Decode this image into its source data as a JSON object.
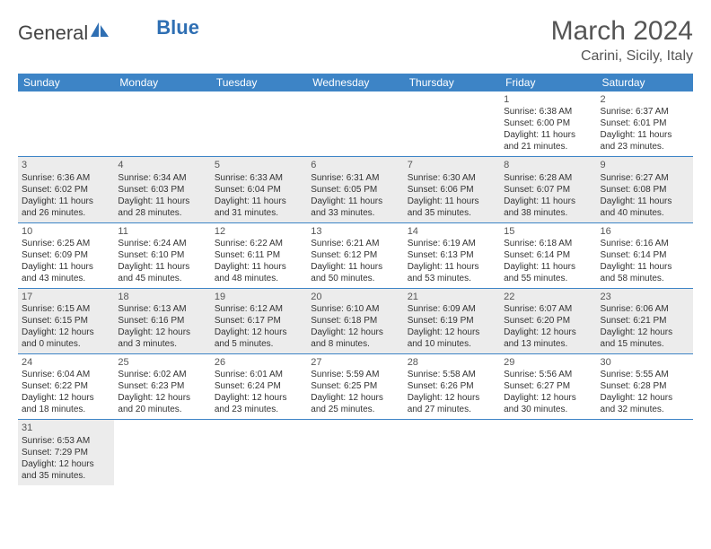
{
  "brand": {
    "part1": "General",
    "part2": "Blue"
  },
  "title": "March 2024",
  "location": "Carini, Sicily, Italy",
  "colors": {
    "header_bg": "#3d84c6",
    "header_text": "#ffffff",
    "shade_bg": "#ececec",
    "rule": "#3d84c6",
    "brand_blue": "#2f6fb3",
    "text": "#333333"
  },
  "day_headers": [
    "Sunday",
    "Monday",
    "Tuesday",
    "Wednesday",
    "Thursday",
    "Friday",
    "Saturday"
  ],
  "weeks": [
    {
      "shade": false,
      "cells": [
        null,
        null,
        null,
        null,
        null,
        {
          "n": "1",
          "sr": "Sunrise: 6:38 AM",
          "ss": "Sunset: 6:00 PM",
          "d1": "Daylight: 11 hours",
          "d2": "and 21 minutes."
        },
        {
          "n": "2",
          "sr": "Sunrise: 6:37 AM",
          "ss": "Sunset: 6:01 PM",
          "d1": "Daylight: 11 hours",
          "d2": "and 23 minutes."
        }
      ]
    },
    {
      "shade": true,
      "cells": [
        {
          "n": "3",
          "sr": "Sunrise: 6:36 AM",
          "ss": "Sunset: 6:02 PM",
          "d1": "Daylight: 11 hours",
          "d2": "and 26 minutes."
        },
        {
          "n": "4",
          "sr": "Sunrise: 6:34 AM",
          "ss": "Sunset: 6:03 PM",
          "d1": "Daylight: 11 hours",
          "d2": "and 28 minutes."
        },
        {
          "n": "5",
          "sr": "Sunrise: 6:33 AM",
          "ss": "Sunset: 6:04 PM",
          "d1": "Daylight: 11 hours",
          "d2": "and 31 minutes."
        },
        {
          "n": "6",
          "sr": "Sunrise: 6:31 AM",
          "ss": "Sunset: 6:05 PM",
          "d1": "Daylight: 11 hours",
          "d2": "and 33 minutes."
        },
        {
          "n": "7",
          "sr": "Sunrise: 6:30 AM",
          "ss": "Sunset: 6:06 PM",
          "d1": "Daylight: 11 hours",
          "d2": "and 35 minutes."
        },
        {
          "n": "8",
          "sr": "Sunrise: 6:28 AM",
          "ss": "Sunset: 6:07 PM",
          "d1": "Daylight: 11 hours",
          "d2": "and 38 minutes."
        },
        {
          "n": "9",
          "sr": "Sunrise: 6:27 AM",
          "ss": "Sunset: 6:08 PM",
          "d1": "Daylight: 11 hours",
          "d2": "and 40 minutes."
        }
      ]
    },
    {
      "shade": false,
      "cells": [
        {
          "n": "10",
          "sr": "Sunrise: 6:25 AM",
          "ss": "Sunset: 6:09 PM",
          "d1": "Daylight: 11 hours",
          "d2": "and 43 minutes."
        },
        {
          "n": "11",
          "sr": "Sunrise: 6:24 AM",
          "ss": "Sunset: 6:10 PM",
          "d1": "Daylight: 11 hours",
          "d2": "and 45 minutes."
        },
        {
          "n": "12",
          "sr": "Sunrise: 6:22 AM",
          "ss": "Sunset: 6:11 PM",
          "d1": "Daylight: 11 hours",
          "d2": "and 48 minutes."
        },
        {
          "n": "13",
          "sr": "Sunrise: 6:21 AM",
          "ss": "Sunset: 6:12 PM",
          "d1": "Daylight: 11 hours",
          "d2": "and 50 minutes."
        },
        {
          "n": "14",
          "sr": "Sunrise: 6:19 AM",
          "ss": "Sunset: 6:13 PM",
          "d1": "Daylight: 11 hours",
          "d2": "and 53 minutes."
        },
        {
          "n": "15",
          "sr": "Sunrise: 6:18 AM",
          "ss": "Sunset: 6:14 PM",
          "d1": "Daylight: 11 hours",
          "d2": "and 55 minutes."
        },
        {
          "n": "16",
          "sr": "Sunrise: 6:16 AM",
          "ss": "Sunset: 6:14 PM",
          "d1": "Daylight: 11 hours",
          "d2": "and 58 minutes."
        }
      ]
    },
    {
      "shade": true,
      "cells": [
        {
          "n": "17",
          "sr": "Sunrise: 6:15 AM",
          "ss": "Sunset: 6:15 PM",
          "d1": "Daylight: 12 hours",
          "d2": "and 0 minutes."
        },
        {
          "n": "18",
          "sr": "Sunrise: 6:13 AM",
          "ss": "Sunset: 6:16 PM",
          "d1": "Daylight: 12 hours",
          "d2": "and 3 minutes."
        },
        {
          "n": "19",
          "sr": "Sunrise: 6:12 AM",
          "ss": "Sunset: 6:17 PM",
          "d1": "Daylight: 12 hours",
          "d2": "and 5 minutes."
        },
        {
          "n": "20",
          "sr": "Sunrise: 6:10 AM",
          "ss": "Sunset: 6:18 PM",
          "d1": "Daylight: 12 hours",
          "d2": "and 8 minutes."
        },
        {
          "n": "21",
          "sr": "Sunrise: 6:09 AM",
          "ss": "Sunset: 6:19 PM",
          "d1": "Daylight: 12 hours",
          "d2": "and 10 minutes."
        },
        {
          "n": "22",
          "sr": "Sunrise: 6:07 AM",
          "ss": "Sunset: 6:20 PM",
          "d1": "Daylight: 12 hours",
          "d2": "and 13 minutes."
        },
        {
          "n": "23",
          "sr": "Sunrise: 6:06 AM",
          "ss": "Sunset: 6:21 PM",
          "d1": "Daylight: 12 hours",
          "d2": "and 15 minutes."
        }
      ]
    },
    {
      "shade": false,
      "cells": [
        {
          "n": "24",
          "sr": "Sunrise: 6:04 AM",
          "ss": "Sunset: 6:22 PM",
          "d1": "Daylight: 12 hours",
          "d2": "and 18 minutes."
        },
        {
          "n": "25",
          "sr": "Sunrise: 6:02 AM",
          "ss": "Sunset: 6:23 PM",
          "d1": "Daylight: 12 hours",
          "d2": "and 20 minutes."
        },
        {
          "n": "26",
          "sr": "Sunrise: 6:01 AM",
          "ss": "Sunset: 6:24 PM",
          "d1": "Daylight: 12 hours",
          "d2": "and 23 minutes."
        },
        {
          "n": "27",
          "sr": "Sunrise: 5:59 AM",
          "ss": "Sunset: 6:25 PM",
          "d1": "Daylight: 12 hours",
          "d2": "and 25 minutes."
        },
        {
          "n": "28",
          "sr": "Sunrise: 5:58 AM",
          "ss": "Sunset: 6:26 PM",
          "d1": "Daylight: 12 hours",
          "d2": "and 27 minutes."
        },
        {
          "n": "29",
          "sr": "Sunrise: 5:56 AM",
          "ss": "Sunset: 6:27 PM",
          "d1": "Daylight: 12 hours",
          "d2": "and 30 minutes."
        },
        {
          "n": "30",
          "sr": "Sunrise: 5:55 AM",
          "ss": "Sunset: 6:28 PM",
          "d1": "Daylight: 12 hours",
          "d2": "and 32 minutes."
        }
      ]
    },
    {
      "shade": true,
      "last": true,
      "cells": [
        {
          "n": "31",
          "sr": "Sunrise: 6:53 AM",
          "ss": "Sunset: 7:29 PM",
          "d1": "Daylight: 12 hours",
          "d2": "and 35 minutes."
        },
        null,
        null,
        null,
        null,
        null,
        null
      ]
    }
  ]
}
